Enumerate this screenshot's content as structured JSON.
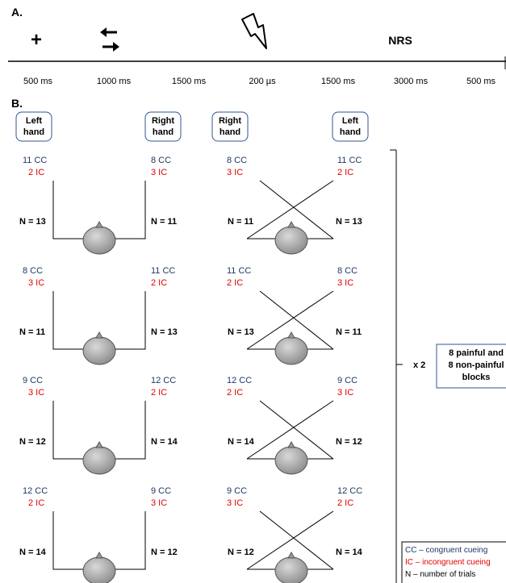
{
  "panel_a": {
    "label": "A.",
    "fixation_symbol": "+",
    "nrs_label": "NRS",
    "timeline": [
      "500 ms",
      "1000 ms",
      "1500 ms",
      "200 µs",
      "1500 ms",
      "3000 ms",
      "500 ms"
    ]
  },
  "panel_b": {
    "label": "B.",
    "headers": {
      "uncrossed_left": "Left hand",
      "uncrossed_right": "Right hand",
      "crossed_left": "Right hand",
      "crossed_right": "Left hand"
    },
    "rows": [
      {
        "uncrossed": {
          "left_cc": "11 CC",
          "left_ic": "2 IC",
          "right_cc": "8 CC",
          "right_ic": "3 IC",
          "left_n": "N = 13",
          "right_n": "N = 11"
        },
        "crossed": {
          "left_cc": "8 CC",
          "left_ic": "3 IC",
          "right_cc": "11 CC",
          "right_ic": "2 IC",
          "left_n": "N = 11",
          "right_n": "N = 13"
        }
      },
      {
        "uncrossed": {
          "left_cc": "8 CC",
          "left_ic": "3 IC",
          "right_cc": "11 CC",
          "right_ic": "2 IC",
          "left_n": "N = 11",
          "right_n": "N = 13"
        },
        "crossed": {
          "left_cc": "11 CC",
          "left_ic": "2 IC",
          "right_cc": "8 CC",
          "right_ic": "3 IC",
          "left_n": "N = 13",
          "right_n": "N = 11"
        }
      },
      {
        "uncrossed": {
          "left_cc": "9 CC",
          "left_ic": "3 IC",
          "right_cc": "12 CC",
          "right_ic": "2 IC",
          "left_n": "N = 12",
          "right_n": "N = 14"
        },
        "crossed": {
          "left_cc": "12 CC",
          "left_ic": "2 IC",
          "right_cc": "9 CC",
          "right_ic": "3 IC",
          "left_n": "N = 14",
          "right_n": "N = 12"
        }
      },
      {
        "uncrossed": {
          "left_cc": "12 CC",
          "left_ic": "2 IC",
          "right_cc": "9 CC",
          "right_ic": "3 IC",
          "left_n": "N = 14",
          "right_n": "N = 12"
        },
        "crossed": {
          "left_cc": "9 CC",
          "left_ic": "3 IC",
          "right_cc": "12 CC",
          "right_ic": "2 IC",
          "left_n": "N = 12",
          "right_n": "N = 14"
        }
      }
    ],
    "multiplier": "x 2",
    "blocks_box": [
      "8 painful and",
      "8 non-painful",
      "blocks"
    ],
    "legend": [
      "CC – congruent cueing",
      "IC – incongruent cueing",
      "N – number of trials"
    ]
  }
}
